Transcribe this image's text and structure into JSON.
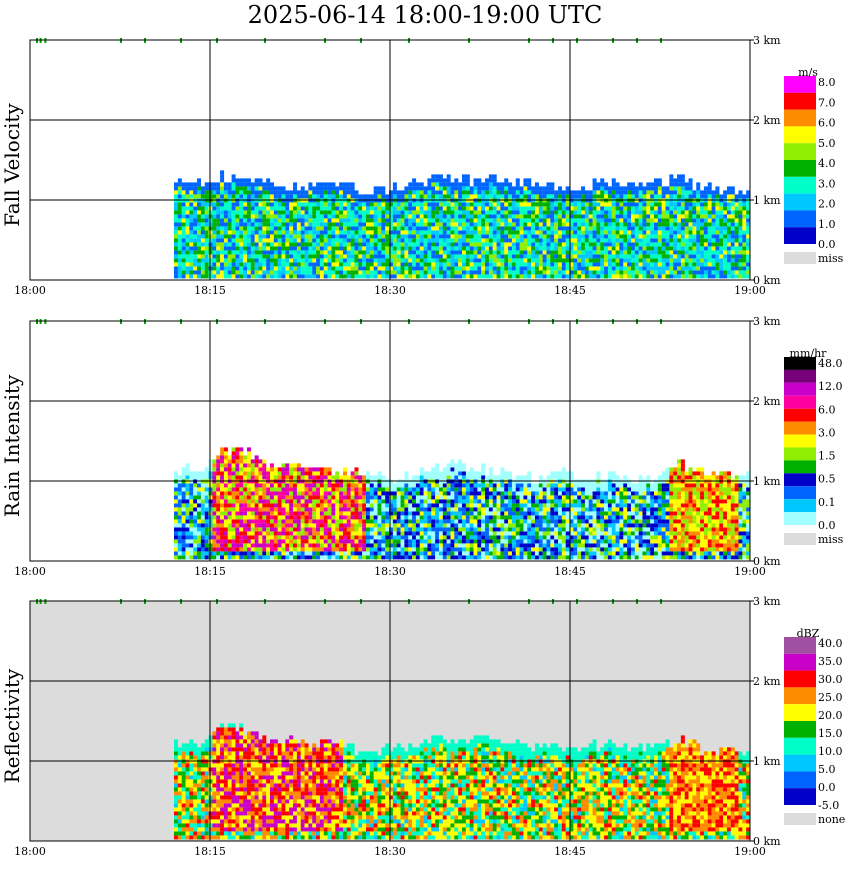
{
  "title": "2025-06-14   18:00-19:00 UTC",
  "colors": {
    "missing": "#dcdcdc",
    "grid": "#000000",
    "frame": "#000000",
    "marker": "#00a000"
  },
  "chart_data": [
    {
      "type": "heatmap",
      "name": "fall-velocity",
      "ylabel": "Fall Velocity",
      "unit": "m/s",
      "xlim": [
        "18:00",
        "19:00"
      ],
      "ylim": [
        0,
        3
      ],
      "xticks": [
        "18:00",
        "18:15",
        "18:30",
        "18:45",
        "19:00"
      ],
      "yticks": [
        "0 km",
        "1 km",
        "2 km",
        "3 km"
      ],
      "grid": true,
      "background": "none",
      "legend": {
        "labels": [
          "8.0",
          "7.0",
          "6.0",
          "5.0",
          "4.0",
          "3.0",
          "2.0",
          "1.0",
          "0.0",
          "miss"
        ],
        "colors": [
          "#ff00ff",
          "#ff0000",
          "#ff8c00",
          "#ffff00",
          "#90ee00",
          "#00b000",
          "#00ffc8",
          "#00c8ff",
          "#0064ff",
          "#0000c8",
          "#dcdcdc"
        ]
      },
      "dominant": [
        "#00c8ff",
        "#00ffc8",
        "#00b000",
        "#0064ff"
      ],
      "secondary": [
        "#90ee00",
        "#ffff00",
        "#00ffc8"
      ],
      "echo_top_km": [
        [
          12,
          1.26
        ],
        [
          14,
          1.22
        ],
        [
          16,
          1.26
        ],
        [
          18,
          1.24
        ],
        [
          20,
          1.18
        ],
        [
          22,
          1.16
        ],
        [
          24,
          1.16
        ],
        [
          26,
          1.2
        ],
        [
          28,
          1.1
        ],
        [
          30,
          1.12
        ],
        [
          32,
          1.18
        ],
        [
          34,
          1.26
        ],
        [
          36,
          1.22
        ],
        [
          38,
          1.26
        ],
        [
          40,
          1.2
        ],
        [
          42,
          1.17
        ],
        [
          44,
          1.14
        ],
        [
          46,
          1.12
        ],
        [
          48,
          1.22
        ],
        [
          50,
          1.14
        ],
        [
          52,
          1.18
        ],
        [
          54,
          1.24
        ],
        [
          56,
          1.12
        ],
        [
          58,
          1.1
        ],
        [
          60,
          1.14
        ]
      ],
      "strong_cores": []
    },
    {
      "type": "heatmap",
      "name": "rain-intensity",
      "ylabel": "Rain Intensity",
      "unit": "mm/hr",
      "xlim": [
        "18:00",
        "19:00"
      ],
      "ylim": [
        0,
        3
      ],
      "xticks": [
        "18:00",
        "18:15",
        "18:30",
        "18:45",
        "19:00"
      ],
      "yticks": [
        "0 km",
        "1 km",
        "2 km",
        "3 km"
      ],
      "grid": true,
      "background": "none",
      "legend": {
        "labels": [
          "48.0",
          "12.0",
          "6.0",
          "3.0",
          "1.5",
          "0.5",
          "0.1",
          "0.0",
          "miss"
        ],
        "colors": [
          "#000000",
          "#780078",
          "#c800c8",
          "#ff00a0",
          "#ff0000",
          "#ff8c00",
          "#ffff00",
          "#90ee00",
          "#00b000",
          "#0000c8",
          "#0064ff",
          "#00c8ff",
          "#a0ffff",
          "#dcdcdc"
        ]
      },
      "dominant": [
        "#0000c8",
        "#00c8ff",
        "#0064ff",
        "#a0ffff"
      ],
      "secondary": [
        "#00b000",
        "#90ee00",
        "#ffff00"
      ],
      "echo_top_km": [
        [
          12,
          1.1
        ],
        [
          14,
          1.12
        ],
        [
          16,
          1.38
        ],
        [
          18,
          1.36
        ],
        [
          20,
          1.16
        ],
        [
          22,
          1.14
        ],
        [
          24,
          1.1
        ],
        [
          26,
          1.08
        ],
        [
          28,
          1.06
        ],
        [
          30,
          1.0
        ],
        [
          32,
          1.06
        ],
        [
          34,
          1.18
        ],
        [
          36,
          1.18
        ],
        [
          38,
          1.12
        ],
        [
          40,
          1.08
        ],
        [
          42,
          1.0
        ],
        [
          44,
          1.12
        ],
        [
          46,
          1.0
        ],
        [
          48,
          1.06
        ],
        [
          50,
          1.0
        ],
        [
          52,
          1.0
        ],
        [
          54,
          1.18
        ],
        [
          56,
          1.1
        ],
        [
          58,
          1.06
        ],
        [
          60,
          1.0
        ]
      ],
      "strong_cores": [
        [
          15,
          28,
          0.1,
          1.5,
          [
            "#ff0000",
            "#ff8c00",
            "#ffff00",
            "#90ee00",
            "#ff00a0",
            "#c800c8"
          ]
        ],
        [
          53,
          59,
          0.1,
          1.4,
          [
            "#ff0000",
            "#ff8c00",
            "#ffff00",
            "#90ee00"
          ]
        ]
      ]
    },
    {
      "type": "heatmap",
      "name": "reflectivity",
      "ylabel": "Reflectivity",
      "unit": "dBZ",
      "xlim": [
        "18:00",
        "19:00"
      ],
      "ylim": [
        0,
        3
      ],
      "xticks": [
        "18:00",
        "18:15",
        "18:30",
        "18:45",
        "19:00"
      ],
      "yticks": [
        "0 km",
        "1 km",
        "2 km",
        "3 km"
      ],
      "grid": true,
      "background": "#dcdcdc",
      "legend": {
        "labels": [
          "40.0",
          "35.0",
          "30.0",
          "25.0",
          "20.0",
          "15.0",
          "10.0",
          "5.0",
          "0.0",
          "-5.0",
          "none"
        ],
        "colors": [
          "#a050a0",
          "#c800c8",
          "#ff0000",
          "#ff8c00",
          "#ffff00",
          "#00b000",
          "#00ffc8",
          "#00c8ff",
          "#0064ff",
          "#0000c8",
          "#dcdcdc"
        ]
      },
      "dominant": [
        "#ffff00",
        "#ff8c00",
        "#00b000",
        "#00ffc8"
      ],
      "secondary": [
        "#00c8ff",
        "#ff0000",
        "#ffff00"
      ],
      "echo_top_km": [
        [
          12,
          1.18
        ],
        [
          14,
          1.18
        ],
        [
          16,
          1.46
        ],
        [
          18,
          1.36
        ],
        [
          20,
          1.22
        ],
        [
          22,
          1.2
        ],
        [
          24,
          1.2
        ],
        [
          26,
          1.18
        ],
        [
          28,
          1.08
        ],
        [
          30,
          1.12
        ],
        [
          32,
          1.16
        ],
        [
          34,
          1.26
        ],
        [
          36,
          1.22
        ],
        [
          38,
          1.26
        ],
        [
          40,
          1.2
        ],
        [
          42,
          1.17
        ],
        [
          44,
          1.14
        ],
        [
          46,
          1.12
        ],
        [
          48,
          1.22
        ],
        [
          50,
          1.14
        ],
        [
          52,
          1.18
        ],
        [
          54,
          1.22
        ],
        [
          56,
          1.12
        ],
        [
          58,
          1.1
        ],
        [
          60,
          1.08
        ]
      ],
      "strong_cores": [
        [
          15,
          26,
          0.1,
          1.4,
          [
            "#ff0000",
            "#ff8c00",
            "#ffff00",
            "#c800c8"
          ]
        ],
        [
          53,
          59,
          0.1,
          1.3,
          [
            "#ff8c00",
            "#ff0000",
            "#ffff00"
          ]
        ]
      ]
    }
  ]
}
